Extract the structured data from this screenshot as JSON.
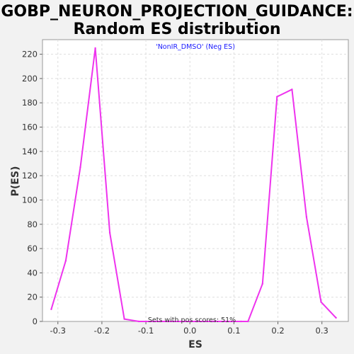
{
  "chart_data": {
    "type": "line",
    "title": [
      "GOBP_NEURON_PROJECTION_GUIDANCE:",
      "Random ES distribution"
    ],
    "subtitle": "'NonIR_DMSO' (Neg ES)",
    "xlabel": "ES",
    "ylabel": "P(ES)",
    "annotation": "Sets with pos scores: 51%",
    "xlim": [
      -0.335,
      0.36
    ],
    "ylim": [
      0,
      232
    ],
    "xticks": [
      -0.3,
      -0.2,
      -0.1,
      0.0,
      0.1,
      0.2,
      0.3
    ],
    "xtick_labels": [
      "-0.3",
      "-0.2",
      "-0.1",
      "0.0",
      "0.1",
      "0.2",
      "0.3"
    ],
    "yticks": [
      0,
      20,
      40,
      60,
      80,
      100,
      120,
      140,
      160,
      180,
      200,
      220
    ],
    "grid": true,
    "series": [
      {
        "color": "#ee33ee",
        "x": [
          -0.315,
          -0.282,
          -0.249,
          -0.215,
          -0.182,
          -0.149,
          -0.116,
          -0.083,
          -0.05,
          -0.017,
          0.017,
          0.05,
          0.083,
          0.116,
          0.132,
          0.165,
          0.198,
          0.232,
          0.265,
          0.298,
          0.332
        ],
        "y": [
          10,
          50,
          127,
          225,
          73,
          2,
          0,
          0,
          0,
          0,
          0,
          0,
          0,
          0,
          0,
          31,
          185,
          191,
          86,
          16,
          3
        ]
      }
    ]
  }
}
